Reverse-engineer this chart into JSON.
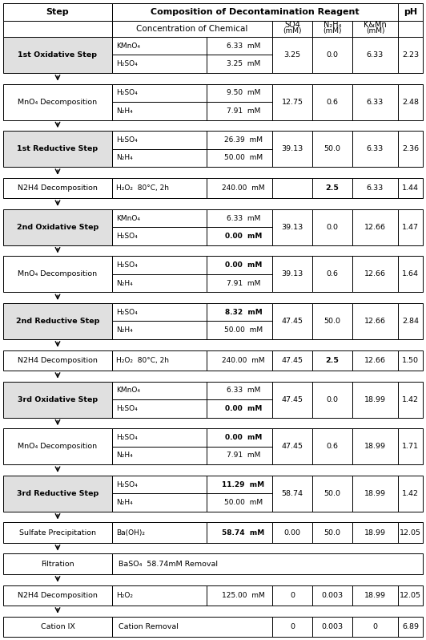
{
  "rows": [
    {
      "step": "1st Oxidative Step",
      "bold_step": true,
      "arrow_before": false,
      "chemicals": [
        [
          "KMnO₄",
          "6.33  mM"
        ],
        [
          "H₂SO₄",
          "3.25  mM"
        ]
      ],
      "so4": "3.25",
      "n2h4": "0.0",
      "kmn": "6.33",
      "ph": "2.23",
      "bold_chem_vals": [
        false,
        false
      ],
      "bold_n2h4": false,
      "two_rows": true
    },
    {
      "step": "MnO₄ Decomposition",
      "bold_step": false,
      "arrow_before": true,
      "chemicals": [
        [
          "H₂SO₄",
          "9.50  mM"
        ],
        [
          "N₂H₄",
          "7.91  mM"
        ]
      ],
      "so4": "12.75",
      "n2h4": "0.6",
      "kmn": "6.33",
      "ph": "2.48",
      "bold_chem_vals": [
        false,
        false
      ],
      "bold_n2h4": false,
      "two_rows": true
    },
    {
      "step": "1st Reductive Step",
      "bold_step": true,
      "arrow_before": true,
      "chemicals": [
        [
          "H₂SO₄",
          "26.39  mM"
        ],
        [
          "N₂H₄",
          "50.00  mM"
        ]
      ],
      "so4": "39.13",
      "n2h4": "50.0",
      "kmn": "6.33",
      "ph": "2.36",
      "bold_chem_vals": [
        false,
        false
      ],
      "bold_n2h4": false,
      "two_rows": true
    },
    {
      "step": "N2H4 Decomposition",
      "bold_step": false,
      "arrow_before": true,
      "chemicals": [
        [
          "H₂O₂  80°C, 2h",
          "240.00  mM"
        ]
      ],
      "so4": "",
      "n2h4": "2.5",
      "kmn": "6.33",
      "ph": "1.44",
      "bold_chem_vals": [
        false
      ],
      "bold_n2h4": true,
      "two_rows": false
    },
    {
      "step": "2nd Oxidative Step",
      "bold_step": true,
      "arrow_before": true,
      "chemicals": [
        [
          "KMnO₄",
          "6.33  mM"
        ],
        [
          "H₂SO₄",
          "0.00  mM"
        ]
      ],
      "so4": "39.13",
      "n2h4": "0.0",
      "kmn": "12.66",
      "ph": "1.47",
      "bold_chem_vals": [
        false,
        true
      ],
      "bold_n2h4": false,
      "two_rows": true
    },
    {
      "step": "MnO₄ Decomposition",
      "bold_step": false,
      "arrow_before": true,
      "chemicals": [
        [
          "H₂SO₄",
          "0.00  mM"
        ],
        [
          "N₂H₄",
          "7.91  mM"
        ]
      ],
      "so4": "39.13",
      "n2h4": "0.6",
      "kmn": "12.66",
      "ph": "1.64",
      "bold_chem_vals": [
        true,
        false
      ],
      "bold_n2h4": false,
      "two_rows": true
    },
    {
      "step": "2nd Reductive Step",
      "bold_step": true,
      "arrow_before": true,
      "chemicals": [
        [
          "H₂SO₄",
          "8.32  mM"
        ],
        [
          "N₂H₄",
          "50.00  mM"
        ]
      ],
      "so4": "47.45",
      "n2h4": "50.0",
      "kmn": "12.66",
      "ph": "2.84",
      "bold_chem_vals": [
        true,
        false
      ],
      "bold_n2h4": false,
      "two_rows": true
    },
    {
      "step": "N2H4 Decomposition",
      "bold_step": false,
      "arrow_before": true,
      "chemicals": [
        [
          "H₂O₂  80°C, 2h",
          "240.00  mM"
        ]
      ],
      "so4": "47.45",
      "n2h4": "2.5",
      "kmn": "12.66",
      "ph": "1.50",
      "bold_chem_vals": [
        false
      ],
      "bold_n2h4": true,
      "two_rows": false
    },
    {
      "step": "3rd Oxidative Step",
      "bold_step": true,
      "arrow_before": true,
      "chemicals": [
        [
          "KMnO₄",
          "6.33  mM"
        ],
        [
          "H₂SO₄",
          "0.00  mM"
        ]
      ],
      "so4": "47.45",
      "n2h4": "0.0",
      "kmn": "18.99",
      "ph": "1.42",
      "bold_chem_vals": [
        false,
        true
      ],
      "bold_n2h4": false,
      "two_rows": true
    },
    {
      "step": "MnO₄ Decomposition",
      "bold_step": false,
      "arrow_before": true,
      "chemicals": [
        [
          "H₂SO₄",
          "0.00  mM"
        ],
        [
          "N₂H₄",
          "7.91  mM"
        ]
      ],
      "so4": "47.45",
      "n2h4": "0.6",
      "kmn": "18.99",
      "ph": "1.71",
      "bold_chem_vals": [
        true,
        false
      ],
      "bold_n2h4": false,
      "two_rows": true
    },
    {
      "step": "3rd Reductive Step",
      "bold_step": true,
      "arrow_before": true,
      "chemicals": [
        [
          "H₂SO₄",
          "11.29  mM"
        ],
        [
          "N₂H₄",
          "50.00  mM"
        ]
      ],
      "so4": "58.74",
      "n2h4": "50.0",
      "kmn": "18.99",
      "ph": "1.42",
      "bold_chem_vals": [
        true,
        false
      ],
      "bold_n2h4": false,
      "two_rows": true
    },
    {
      "step": "Sulfate Precipitation",
      "bold_step": false,
      "arrow_before": true,
      "chemicals": [
        [
          "Ba(OH)₂",
          "58.74  mM"
        ]
      ],
      "so4": "0.00",
      "n2h4": "50.0",
      "kmn": "18.99",
      "ph": "12.05",
      "bold_chem_vals": [
        true
      ],
      "bold_n2h4": false,
      "two_rows": false,
      "sulfate": true
    },
    {
      "step": "Filtration",
      "bold_step": false,
      "arrow_before": true,
      "chemicals": [
        [
          "BaSO₄  58.74mM Removal",
          ""
        ]
      ],
      "so4": "",
      "n2h4": "",
      "kmn": "",
      "ph": "",
      "bold_chem_vals": [
        false
      ],
      "bold_n2h4": false,
      "two_rows": false,
      "filtration": true
    },
    {
      "step": "N2H4 Decomposition",
      "bold_step": false,
      "arrow_before": true,
      "chemicals": [
        [
          "H₂O₂",
          "125.00  mM"
        ]
      ],
      "so4": "0",
      "n2h4": "0.003",
      "kmn": "18.99",
      "ph": "12.05",
      "bold_chem_vals": [
        false
      ],
      "bold_n2h4": false,
      "two_rows": false
    },
    {
      "step": "Cation IX",
      "bold_step": false,
      "arrow_before": true,
      "chemicals": [
        [
          "Cation Removal",
          ""
        ]
      ],
      "so4": "0",
      "n2h4": "0.003",
      "kmn": "0",
      "ph": "6.89",
      "bold_chem_vals": [
        false
      ],
      "bold_n2h4": false,
      "two_rows": false,
      "cation": true
    }
  ]
}
